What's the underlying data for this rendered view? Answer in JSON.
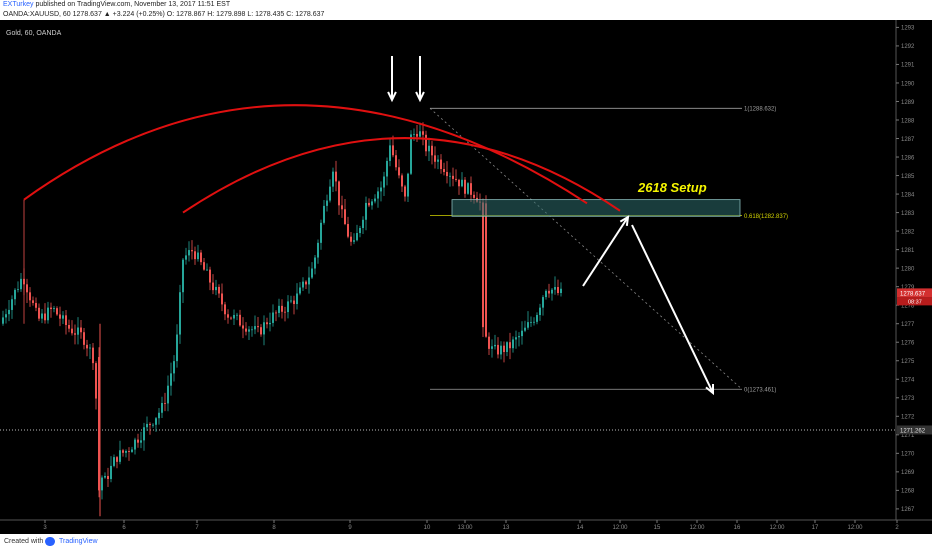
{
  "header": {
    "author": "EXTurkey",
    "published": "published on TradingView.com, November 13, 2017 11:51 EST",
    "symbol": "OANDA:XAUUSD, 60",
    "change": "1278.637 ▲ +3.224 (+0.25%)",
    "ohlc": "O: 1278.867  H: 1279.898  L: 1278.435  C: 1278.637"
  },
  "footer": {
    "created": "Created with",
    "brand": "TradingView"
  },
  "chart_data": {
    "type": "candlestick",
    "instrument_label": "Gold, 60, OANDA",
    "title": "2618 Setup",
    "ylim": [
      1266.4,
      1293.4
    ],
    "price_ticks": [
      1267,
      1268,
      1269,
      1270,
      1271,
      1272,
      1273,
      1274,
      1275,
      1276,
      1277,
      1278,
      1279,
      1280,
      1281,
      1282,
      1283,
      1284,
      1285,
      1286,
      1287,
      1288,
      1289,
      1290,
      1291,
      1292,
      1293
    ],
    "time_ticks": [
      "3",
      "6",
      "7",
      "8",
      "9",
      "10",
      "13:00",
      "13",
      "14",
      "12:00",
      "15",
      "12:00",
      "16",
      "12:00",
      "17",
      "12:00",
      "2"
    ],
    "last_price": {
      "label": "1278.637",
      "value": 1278.637,
      "countdown": "08:37"
    },
    "dotted_level": {
      "label": "1271.262",
      "value": 1271.262
    },
    "fib_levels": [
      {
        "label": "1(1288.632)",
        "value": 1288.632
      },
      {
        "label": "0.618(1282.837)",
        "value": 1282.837
      },
      {
        "label": "0(1273.461)",
        "value": 1273.461
      }
    ],
    "zone": {
      "top": 1283.7,
      "bottom": 1282.8
    },
    "colors": {
      "up": "#26a69a",
      "down": "#ef5350",
      "arc": "#e01010",
      "annotation": "#ffffff",
      "title": "#f5f500",
      "fib_mid": "#d4d400",
      "zone": "#2e6e6e"
    }
  }
}
